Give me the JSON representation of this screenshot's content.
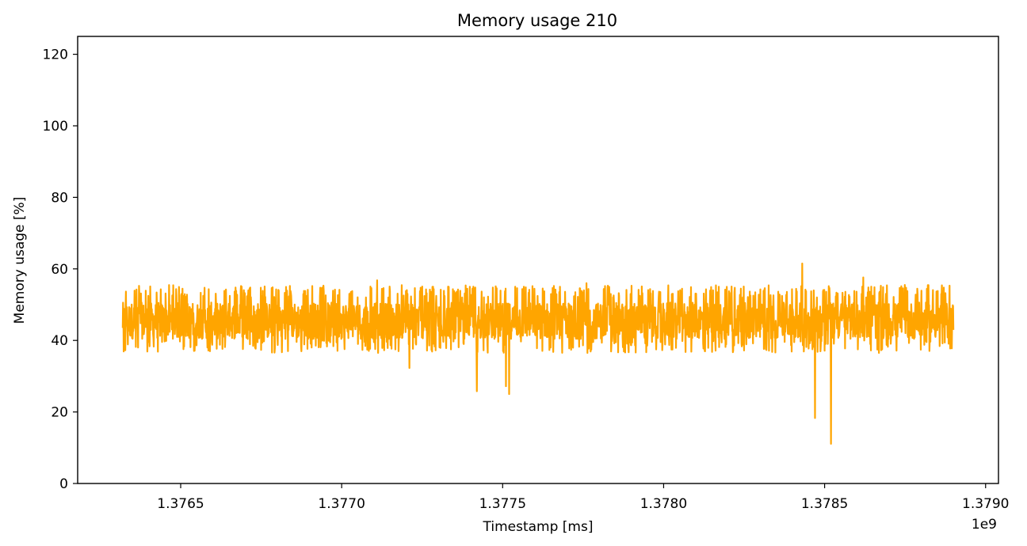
{
  "chart_data": {
    "type": "line",
    "title": "Memory usage 210",
    "xlabel": "Timestamp [ms]",
    "ylabel": "Memory usage [%]",
    "x_offset_label": "1e9",
    "xlim": [
      1.37618,
      1.37904
    ],
    "ylim": [
      0,
      125
    ],
    "xticks": [
      1.3765,
      1.377,
      1.3775,
      1.378,
      1.3785,
      1.379
    ],
    "xtick_labels": [
      "1.3765",
      "1.3770",
      "1.3775",
      "1.3780",
      "1.3785",
      "1.3790"
    ],
    "yticks": [
      0,
      20,
      40,
      60,
      80,
      100,
      120
    ],
    "ytick_labels": [
      "0",
      "20",
      "40",
      "60",
      "80",
      "100",
      "120"
    ],
    "grid": false,
    "series": [
      {
        "color": "#ffa500",
        "x_range": [
          1.37632,
          1.3789
        ],
        "typical_range": [
          40,
          52
        ],
        "mean": 45.5,
        "spikes": [
          {
            "x": 1.37711,
            "y": 56.8
          },
          {
            "x": 1.37721,
            "y": 32.3
          },
          {
            "x": 1.37742,
            "y": 25.8
          },
          {
            "x": 1.37751,
            "y": 27.2
          },
          {
            "x": 1.37752,
            "y": 25.0
          },
          {
            "x": 1.37776,
            "y": 56.0
          },
          {
            "x": 1.37843,
            "y": 61.5
          },
          {
            "x": 1.37847,
            "y": 18.3
          },
          {
            "x": 1.37852,
            "y": 11.1
          },
          {
            "x": 1.37862,
            "y": 57.6
          }
        ]
      }
    ]
  }
}
